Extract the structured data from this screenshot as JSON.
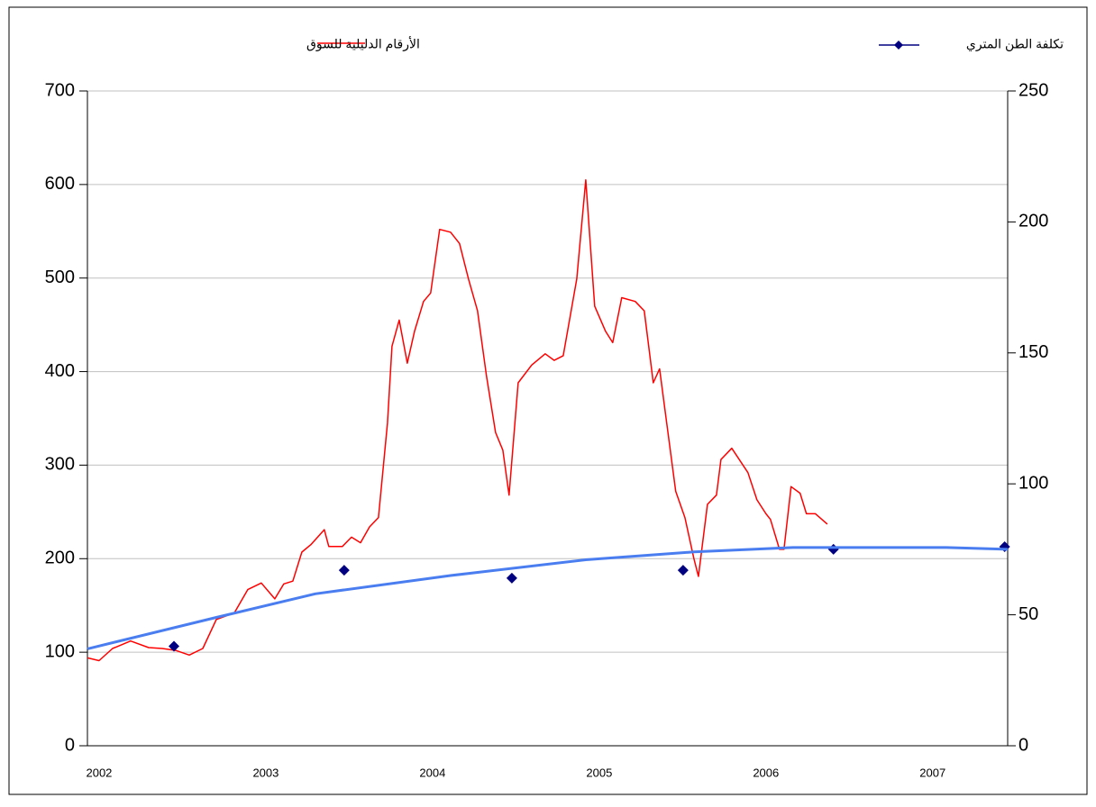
{
  "chart_data": {
    "type": "line",
    "xlim": [
      2001.93,
      2007.45
    ],
    "xticks": [
      2002,
      2003,
      2004,
      2005,
      2006,
      2007
    ],
    "ylim": [
      0,
      700
    ],
    "yticks": [
      0,
      100,
      200,
      300,
      400,
      500,
      600,
      700
    ],
    "y2lim": [
      0,
      250
    ],
    "y2ticks": [
      0,
      50,
      100,
      150,
      200,
      250
    ],
    "grid": true,
    "series": [
      {
        "name": "الأرقام الدليلية للسوق",
        "color": "#ff0000",
        "axis": "y",
        "line": true,
        "marker": "none",
        "x": [
          2001.93,
          2002.0,
          2002.081,
          2002.189,
          2002.297,
          2002.378,
          2002.459,
          2002.541,
          2002.622,
          2002.703,
          2002.811,
          2002.892,
          2002.973,
          2003.054,
          2003.108,
          2003.162,
          2003.216,
          2003.27,
          2003.351,
          2003.378,
          2003.459,
          2003.514,
          2003.568,
          2003.622,
          2003.676,
          2003.73,
          2003.757,
          2003.8,
          2003.849,
          2003.892,
          2003.946,
          2003.989,
          2004.043,
          2004.108,
          2004.162,
          2004.216,
          2004.27,
          2004.324,
          2004.378,
          2004.422,
          2004.459,
          2004.514,
          2004.595,
          2004.676,
          2004.73,
          2004.784,
          2004.865,
          2004.919,
          2004.973,
          2005.038,
          2005.081,
          2005.135,
          2005.216,
          2005.27,
          2005.324,
          2005.362,
          2005.405,
          2005.459,
          2005.514,
          2005.568,
          2005.595,
          2005.649,
          2005.703,
          2005.73,
          2005.795,
          2005.892,
          2005.946,
          2006.0,
          2006.027,
          2006.081,
          2006.108,
          2006.151,
          2006.205,
          2006.243,
          2006.297,
          2006.368
        ],
        "values": [
          94,
          91,
          104,
          112,
          105,
          104,
          102,
          97,
          104,
          135,
          142,
          167,
          174,
          157,
          173,
          176,
          207,
          215,
          231,
          213,
          213,
          223,
          217,
          234,
          244,
          345,
          427,
          455,
          409,
          443,
          475,
          484,
          552,
          549,
          537,
          499,
          465,
          395,
          335,
          316,
          268,
          388,
          407,
          419,
          412,
          417,
          499,
          605,
          470,
          443,
          431,
          479,
          475,
          465,
          388,
          403,
          345,
          272,
          244,
          200,
          181,
          258,
          268,
          306,
          318,
          292,
          263,
          248,
          242,
          210,
          210,
          277,
          270,
          248,
          248,
          237
        ]
      },
      {
        "name": "تكلفة الطن المتري",
        "color": "#000080",
        "axis": "y2",
        "line": false,
        "marker": "diamond",
        "x": [
          2002.449,
          2003.47,
          2004.476,
          2005.503,
          2006.405,
          2007.432
        ],
        "values": [
          38,
          67,
          64,
          67,
          75,
          76
        ]
      },
      {
        "color": "#4a7ef0",
        "axis": "y2",
        "line": true,
        "marker": "none",
        "x": [
          2001.93,
          2002.703,
          2003.297,
          2004.108,
          2004.919,
          2005.568,
          2006.162,
          2007.081,
          2007.45
        ],
        "values": [
          37,
          49,
          58,
          65,
          71,
          74,
          75.7,
          75.7,
          75
        ]
      }
    ]
  }
}
